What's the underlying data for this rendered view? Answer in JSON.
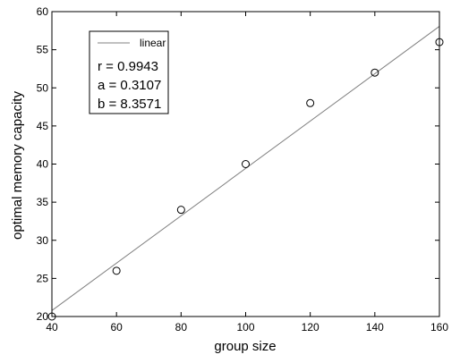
{
  "chart_data": {
    "type": "scatter",
    "title": "",
    "xlabel": "group size",
    "ylabel": "optimal memory capacity",
    "xlim": [
      40,
      160
    ],
    "ylim": [
      20,
      60
    ],
    "x_ticks": [
      40,
      60,
      80,
      100,
      120,
      140,
      160
    ],
    "y_ticks": [
      20,
      25,
      30,
      35,
      40,
      45,
      50,
      55,
      60
    ],
    "grid": false,
    "legend": {
      "placement": "top-left",
      "entries": [
        {
          "label": "linear",
          "color": "#808080"
        }
      ],
      "stats": [
        "r = 0.9943",
        "a = 0.3107",
        "b = 8.3571"
      ]
    },
    "series": [
      {
        "kind": "points",
        "marker": "open-circle",
        "color": "#000000",
        "x": [
          40,
          60,
          80,
          100,
          120,
          140,
          160
        ],
        "y": [
          20,
          26,
          34,
          40,
          48,
          52,
          56
        ]
      },
      {
        "kind": "line",
        "name": "linear",
        "color": "#808080",
        "slope": 0.3107,
        "intercept": 8.3571
      }
    ]
  }
}
